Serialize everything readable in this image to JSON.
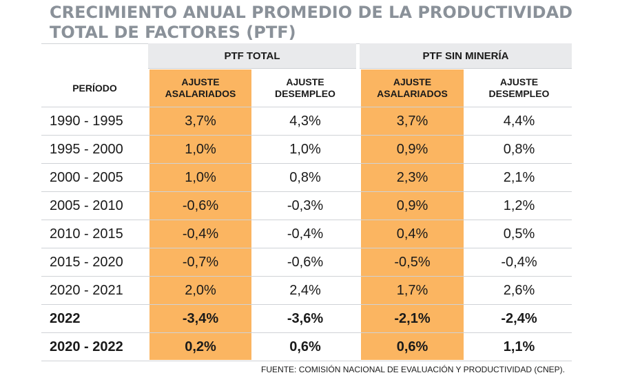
{
  "title": {
    "line1": "CRECIMIENTO ANUAL PROMEDIO DE LA PRODUCTIVIDAD",
    "line2": "TOTAL DE FACTORES (PTF)"
  },
  "headers": {
    "group1": "PTF TOTAL",
    "group2": "PTF SIN MINERÍA",
    "period": "PERÍODO",
    "g1_col1": [
      "AJUSTE",
      "ASALARIADOS"
    ],
    "g1_col2": [
      "AJUSTE",
      "DESEMPLEO"
    ],
    "g2_col1": [
      "AJUSTE",
      "ASALARIADOS"
    ],
    "g2_col2": [
      "AJUSTE",
      "DESEMPLEO"
    ]
  },
  "rows": [
    {
      "period": "1990 - 1995",
      "v": [
        "3,7%",
        "4,3%",
        "3,7%",
        "4,4%"
      ],
      "bold": false
    },
    {
      "period": "1995 - 2000",
      "v": [
        "1,0%",
        "1,0%",
        "0,9%",
        "0,8%"
      ],
      "bold": false
    },
    {
      "period": "2000 - 2005",
      "v": [
        "1,0%",
        "0,8%",
        "2,3%",
        "2,1%"
      ],
      "bold": false
    },
    {
      "period": "2005 - 2010",
      "v": [
        "-0,6%",
        "-0,3%",
        "0,9%",
        "1,2%"
      ],
      "bold": false
    },
    {
      "period": "2010 - 2015",
      "v": [
        "-0,4%",
        "-0,4%",
        "0,4%",
        "0,5%"
      ],
      "bold": false
    },
    {
      "period": "2015 - 2020",
      "v": [
        "-0,7%",
        "-0,6%",
        "-0,5%",
        "-0,4%"
      ],
      "bold": false
    },
    {
      "period": "2020 - 2021",
      "v": [
        "2,0%",
        "2,4%",
        "1,7%",
        "2,6%"
      ],
      "bold": false
    },
    {
      "period": "2022",
      "v": [
        "-3,4%",
        "-3,6%",
        "-2,1%",
        "-2,4%"
      ],
      "bold": true
    },
    {
      "period": "2020 - 2022",
      "v": [
        "0,2%",
        "0,6%",
        "0,6%",
        "1,1%"
      ],
      "bold": true
    }
  ],
  "source": "FUENTE: COMISIÓN NACIONAL DE EVALUACIÓN Y PRODUCTIVIDAD (CNEP).",
  "colors": {
    "highlight": "#fbb561",
    "title": "#8a9199",
    "header_bg": "#e9eaec"
  }
}
